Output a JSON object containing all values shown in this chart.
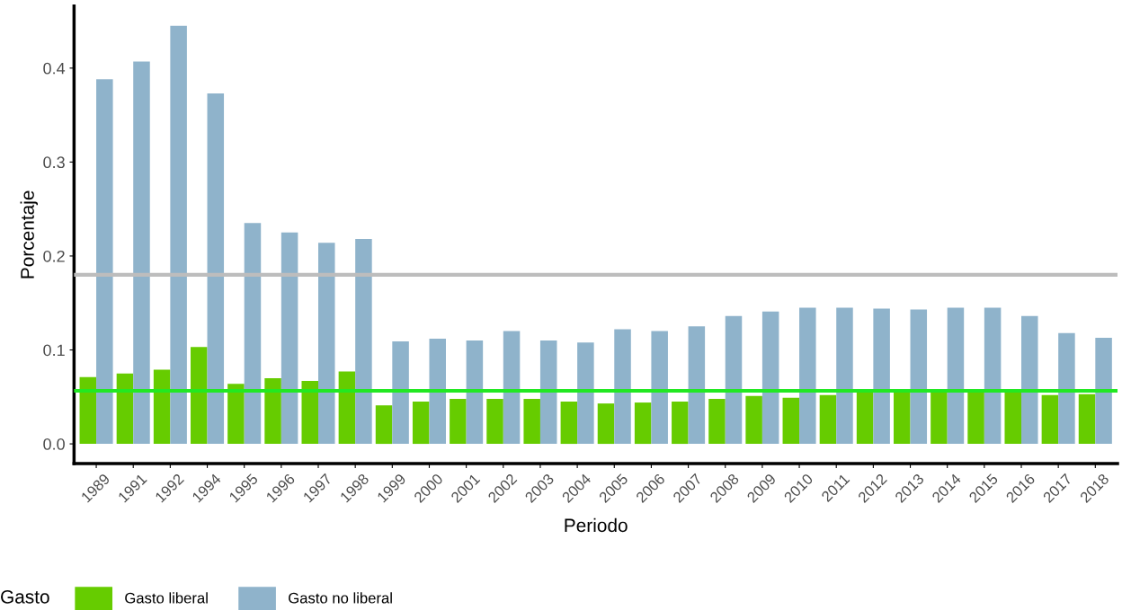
{
  "chart_data": {
    "type": "bar",
    "xlabel": "Periodo",
    "ylabel": "Porcentaje",
    "legend_title": "Gasto",
    "legend": "bottom",
    "grid": false,
    "categories": [
      "1989",
      "1991",
      "1992",
      "1994",
      "1995",
      "1996",
      "1997",
      "1998",
      "1999",
      "2000",
      "2001",
      "2002",
      "2003",
      "2004",
      "2005",
      "2006",
      "2007",
      "2008",
      "2009",
      "2010",
      "2011",
      "2012",
      "2013",
      "2014",
      "2015",
      "2016",
      "2017",
      "2018"
    ],
    "series": [
      {
        "name": "Gasto liberal",
        "color": "#66cc00",
        "values": [
          0.071,
          0.075,
          0.079,
          0.103,
          0.064,
          0.07,
          0.067,
          0.077,
          0.041,
          0.045,
          0.048,
          0.048,
          0.048,
          0.045,
          0.043,
          0.044,
          0.045,
          0.048,
          0.051,
          0.049,
          0.052,
          0.055,
          0.056,
          0.056,
          0.056,
          0.056,
          0.052,
          0.053
        ]
      },
      {
        "name": "Gasto no liberal",
        "color": "#8fb3cb",
        "values": [
          0.388,
          0.407,
          0.445,
          0.373,
          0.235,
          0.225,
          0.214,
          0.218,
          0.109,
          0.112,
          0.11,
          0.12,
          0.11,
          0.108,
          0.122,
          0.12,
          0.125,
          0.136,
          0.141,
          0.145,
          0.145,
          0.144,
          0.143,
          0.145,
          0.145,
          0.136,
          0.118,
          0.113
        ]
      }
    ],
    "ref_lines": [
      {
        "axis": "y",
        "value": 0.18,
        "color": "#bdbdbd"
      },
      {
        "axis": "y",
        "value": 0.0565,
        "color": "#22e822"
      }
    ],
    "ylim": [
      -0.021,
      0.466
    ],
    "yticks": [
      {
        "value": 0,
        "label": "0.0"
      },
      0.1,
      0.2,
      0.3,
      0.4
    ]
  }
}
